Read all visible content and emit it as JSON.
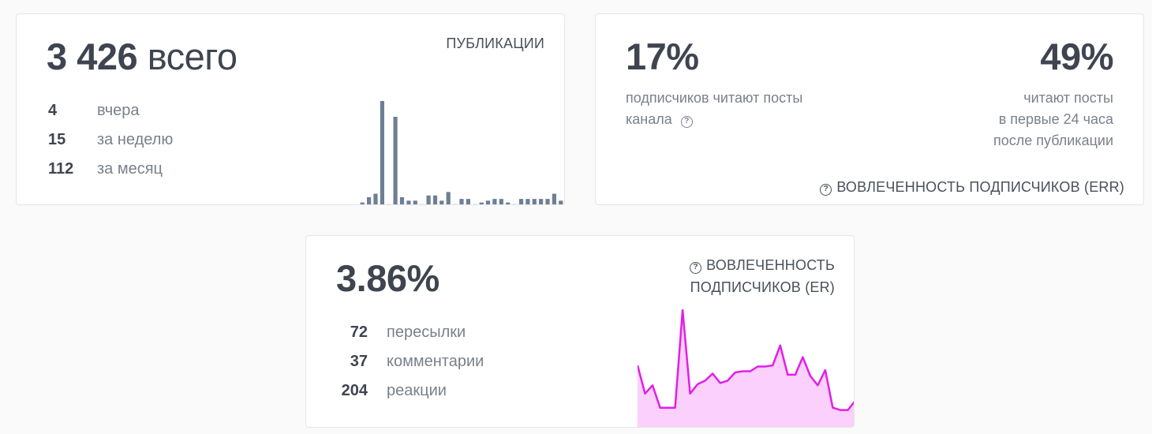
{
  "publications": {
    "total_value": "3 426",
    "total_suffix": "всего",
    "section_label": "ПУБЛИКАЦИИ",
    "stats": [
      {
        "value": "4",
        "label": "вчера"
      },
      {
        "value": "15",
        "label": "за неделю"
      },
      {
        "value": "112",
        "label": "за месяц"
      }
    ],
    "chart_data": {
      "type": "bar",
      "color": "#6e7f94",
      "values": [
        2,
        5,
        7,
        60,
        1,
        51,
        5,
        3,
        3,
        1,
        6,
        6,
        3,
        8,
        1,
        4,
        4,
        1,
        2,
        3,
        4,
        4,
        2,
        1,
        4,
        4,
        4,
        4,
        4,
        7,
        3
      ]
    }
  },
  "err": {
    "left_value": "17%",
    "left_desc_line1": "подписчиков читают посты",
    "left_desc_line2": "канала",
    "right_value": "49%",
    "right_desc_line1": "читают посты",
    "right_desc_line2": "в первые 24 часа",
    "right_desc_line3": "после публикации",
    "section_label": "ВОВЛЕЧЕННОСТЬ ПОДПИСЧИКОВ (ERR)"
  },
  "er": {
    "value": "3.86%",
    "section_label_line1": "ВОВЛЕЧЕННОСТЬ",
    "section_label_line2": "ПОДПИСЧИКОВ (ER)",
    "stats": [
      {
        "value": "72",
        "label": "пересылки"
      },
      {
        "value": "37",
        "label": "комментарии"
      },
      {
        "value": "204",
        "label": "реакции"
      }
    ],
    "chart_data": {
      "type": "area",
      "color": "#e21ee8",
      "fill": "#fbd0fc",
      "values": [
        51,
        27,
        34,
        15,
        15,
        15,
        98,
        27,
        35,
        38,
        44,
        36,
        38,
        45,
        46,
        46,
        50,
        50,
        51,
        68,
        43,
        43,
        58,
        42,
        34,
        47,
        15,
        13,
        13,
        21
      ]
    }
  }
}
